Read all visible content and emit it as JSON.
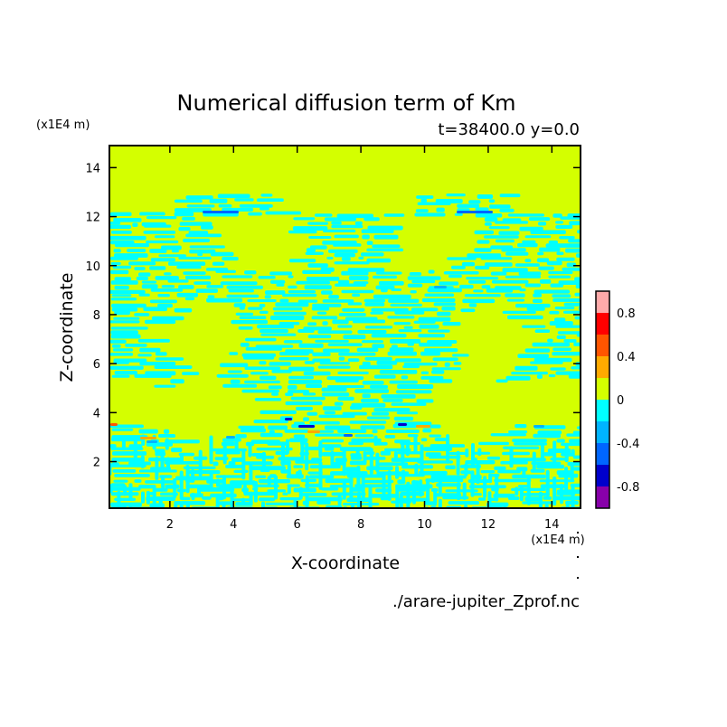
{
  "chart_data": {
    "type": "heatmap",
    "title": "Numerical diffusion term of Km",
    "subtitle": "t=38400.0 y=0.0",
    "xlabel": "X-coordinate",
    "ylabel": "Z-coordinate",
    "x_unit": "(x1E4 m)",
    "y_unit": "(x1E4 m)",
    "xlim": [
      0.1,
      14.9
    ],
    "ylim": [
      0.1,
      14.9
    ],
    "x_ticks": [
      2,
      4,
      6,
      8,
      10,
      12,
      14
    ],
    "y_ticks": [
      2,
      4,
      6,
      8,
      10,
      12,
      14
    ],
    "x_tick_labels": [
      "2",
      "4",
      "6",
      "8",
      "10",
      "12",
      "14"
    ],
    "y_tick_labels": [
      "2",
      "4",
      "6",
      "8",
      "10",
      "12",
      "14"
    ],
    "background_level_color": "#d4ff00",
    "colorbar": {
      "levels": [
        -1.0,
        -0.8,
        -0.6,
        -0.4,
        -0.2,
        0.0,
        0.2,
        0.4,
        0.6,
        0.8,
        1.0
      ],
      "colors": [
        "#8800aa",
        "#0000cc",
        "#0066ff",
        "#00b4ff",
        "#00ffff",
        "#d4ff00",
        "#ffaa00",
        "#ff5500",
        "#ff0000",
        "#ffaaaa"
      ],
      "tick_values": [
        -0.8,
        -0.4,
        0,
        0.4,
        0.8
      ],
      "tick_labels": [
        "-0.8",
        "-0.4",
        "0",
        "0.4",
        "0.8"
      ]
    },
    "source_file": "./arare-jupiter_Zprof.nc"
  }
}
